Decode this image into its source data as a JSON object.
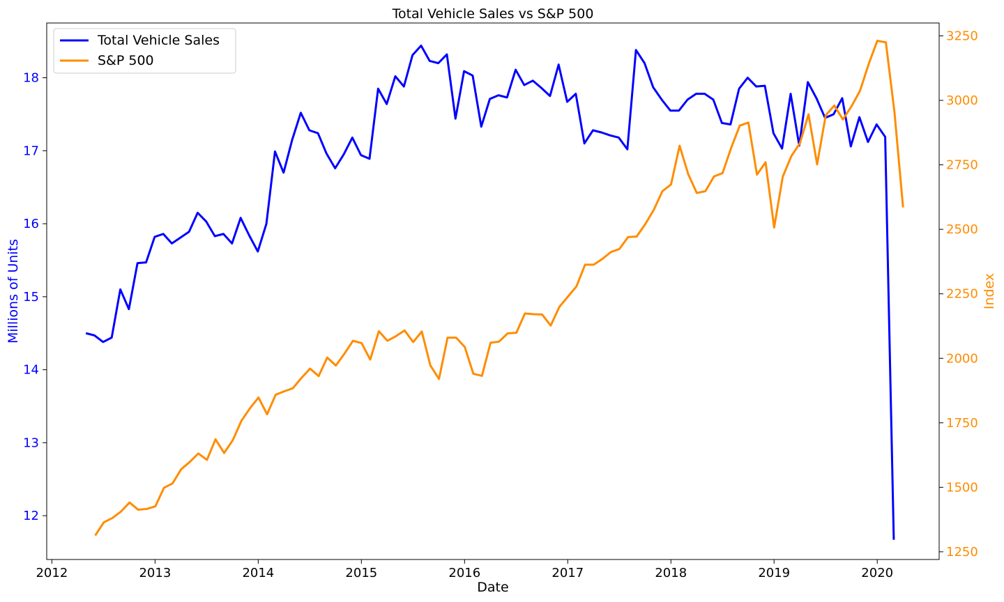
{
  "chart_data": {
    "type": "line",
    "title": "Total Vehicle Sales vs S&P 500",
    "xlabel": "Date",
    "ylabel_left": "Millions of Units",
    "ylabel_right": "Index",
    "xlim": [
      2011.95,
      2020.6
    ],
    "ylim_left": [
      11.4,
      18.75
    ],
    "ylim_right": [
      1220,
      3300
    ],
    "x_ticks": [
      "2012",
      "2013",
      "2014",
      "2015",
      "2016",
      "2017",
      "2018",
      "2019",
      "2020"
    ],
    "y_ticks_left": [
      "12",
      "13",
      "14",
      "15",
      "16",
      "17",
      "18"
    ],
    "y_ticks_right": [
      "1250",
      "1500",
      "1750",
      "2000",
      "2250",
      "2500",
      "2750",
      "3000",
      "3250"
    ],
    "grid": false,
    "legend_position": "top-left",
    "colors": {
      "left_axis": "#0000ff",
      "right_axis": "#ff8c00"
    },
    "series": [
      {
        "name": "Total Vehicle Sales",
        "axis": "left",
        "color": "#0000ff",
        "start_x": 2012.33,
        "step": 0.0833,
        "values": [
          14.5,
          14.47,
          14.38,
          14.44,
          15.1,
          14.83,
          15.46,
          15.47,
          15.82,
          15.86,
          15.73,
          15.81,
          15.89,
          16.15,
          16.03,
          15.83,
          15.86,
          15.73,
          16.08,
          15.84,
          15.62,
          16.0,
          16.99,
          16.7,
          17.15,
          17.52,
          17.28,
          17.24,
          16.96,
          16.76,
          16.95,
          17.18,
          16.94,
          16.89,
          17.85,
          17.64,
          18.02,
          17.88,
          18.31,
          18.44,
          18.23,
          18.2,
          18.32,
          17.44,
          18.09,
          18.03,
          17.33,
          17.71,
          17.76,
          17.73,
          18.11,
          17.9,
          17.96,
          17.86,
          17.75,
          18.18,
          17.67,
          17.78,
          17.1,
          17.28,
          17.25,
          17.21,
          17.18,
          17.02,
          18.38,
          18.2,
          17.87,
          17.7,
          17.55,
          17.55,
          17.7,
          17.78,
          17.78,
          17.7,
          17.38,
          17.36,
          17.85,
          18.0,
          17.88,
          17.89,
          17.24,
          17.03,
          17.78,
          17.07,
          17.94,
          17.72,
          17.45,
          17.5,
          17.72,
          17.06,
          17.46,
          17.12,
          17.36,
          17.19,
          11.67
        ]
      },
      {
        "name": "S&P 500",
        "axis": "right",
        "color": "#ff8c00",
        "start_x": 2012.42,
        "step": 0.0833,
        "values": [
          1313,
          1364,
          1381,
          1406,
          1441,
          1413,
          1416,
          1426,
          1498,
          1515,
          1570,
          1598,
          1631,
          1606,
          1686,
          1633,
          1682,
          1757,
          1806,
          1848,
          1783,
          1859,
          1872,
          1884,
          1924,
          1960,
          1931,
          2003,
          1972,
          2018,
          2068,
          2059,
          1995,
          2105,
          2068,
          2086,
          2108,
          2063,
          2104,
          1972,
          1920,
          2080,
          2080,
          2044,
          1940,
          1932,
          2060,
          2065,
          2097,
          2099,
          2174,
          2171,
          2170,
          2127,
          2199,
          2239,
          2279,
          2363,
          2363,
          2385,
          2412,
          2424,
          2470,
          2472,
          2520,
          2576,
          2648,
          2674,
          2824,
          2714,
          2641,
          2648,
          2705,
          2718,
          2816,
          2902,
          2914,
          2712,
          2760,
          2507,
          2704,
          2784,
          2834,
          2946,
          2752,
          2942,
          2980,
          2926,
          2977,
          3038,
          3141,
          3231,
          3225,
          2954,
          2585
        ]
      }
    ]
  }
}
